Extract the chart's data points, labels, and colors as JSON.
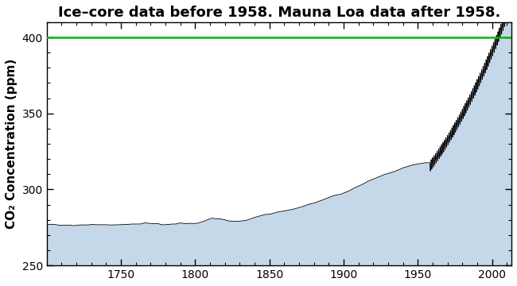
{
  "title": "Ice–core data before 1958. Mauna Loa data after 1958.",
  "ylabel": "CO₂ Concentration (ppm)",
  "xlim": [
    1700,
    2013
  ],
  "ylim": [
    250,
    410
  ],
  "yticks": [
    250,
    300,
    350,
    400
  ],
  "xticks": [
    1750,
    1800,
    1850,
    1900,
    1950,
    2000
  ],
  "hline_y": 400,
  "hline_color": "#00bb00",
  "fill_color": "#c5d8ea",
  "line_color": "#000000",
  "background_color": "#ffffff",
  "title_fontsize": 13,
  "label_fontsize": 11
}
